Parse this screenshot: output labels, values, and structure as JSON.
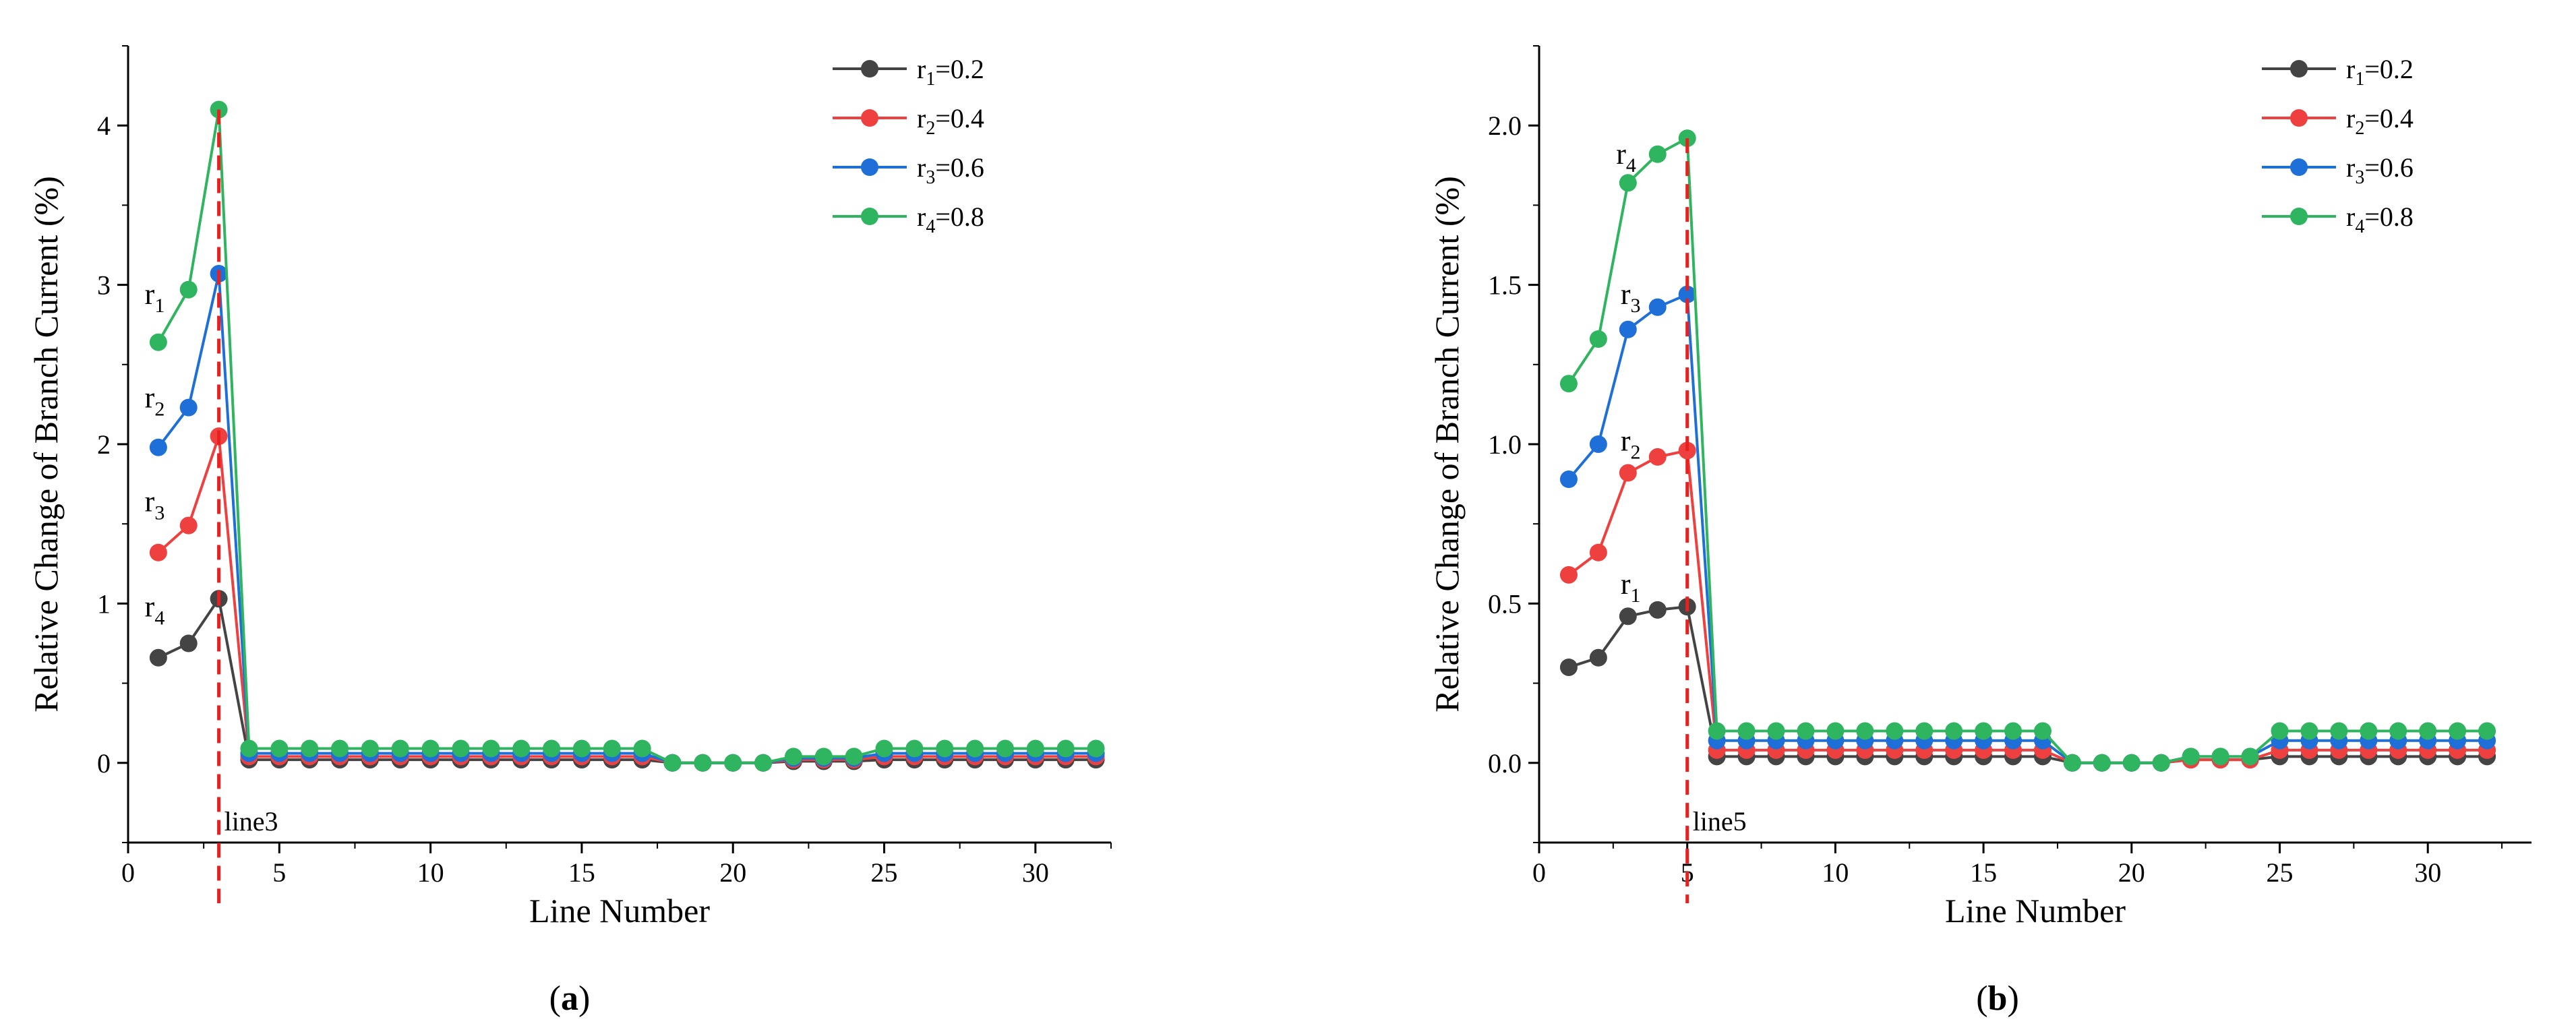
{
  "colors": {
    "r1": "#444444",
    "r2": "#ef4040",
    "r3": "#1f6fd9",
    "r4": "#2fb45f",
    "fault_line": "#e8201f",
    "axis": "#000000"
  },
  "chart_data": [
    {
      "type": "line",
      "panel_label": "(a)",
      "panel_letter": "a",
      "title": "",
      "xlabel": "Line Number",
      "ylabel": "Relative Change of Branch Current (%)",
      "xlim": [
        0,
        32.5
      ],
      "ylim": [
        -0.5,
        4.5
      ],
      "xticks": [
        0,
        5,
        10,
        15,
        20,
        25,
        30
      ],
      "yticks": [
        0,
        1,
        2,
        3,
        4
      ],
      "ytick_labels": [
        "0",
        "1",
        "2",
        "3",
        "4"
      ],
      "legend_position": "top-right",
      "fault_line": {
        "x": 3,
        "label": "line3"
      },
      "x": [
        1,
        2,
        3,
        4,
        5,
        6,
        7,
        8,
        9,
        10,
        11,
        12,
        13,
        14,
        15,
        16,
        17,
        18,
        19,
        20,
        21,
        22,
        23,
        24,
        25,
        26,
        27,
        28,
        29,
        30,
        31,
        32
      ],
      "series": [
        {
          "key": "r1",
          "name_base": "r",
          "name_sub": "1",
          "name_val": "=0.2",
          "values": [
            0.66,
            0.75,
            1.03,
            0.02,
            0.02,
            0.02,
            0.02,
            0.02,
            0.02,
            0.02,
            0.02,
            0.02,
            0.02,
            0.02,
            0.02,
            0.02,
            0.02,
            0.0,
            0.0,
            0.0,
            0.0,
            0.01,
            0.01,
            0.01,
            0.02,
            0.02,
            0.02,
            0.02,
            0.02,
            0.02,
            0.02,
            0.02
          ]
        },
        {
          "key": "r2",
          "name_base": "r",
          "name_sub": "2",
          "name_val": "=0.4",
          "values": [
            1.32,
            1.49,
            2.05,
            0.04,
            0.04,
            0.04,
            0.04,
            0.04,
            0.04,
            0.04,
            0.04,
            0.04,
            0.04,
            0.04,
            0.04,
            0.04,
            0.04,
            0.0,
            0.0,
            0.0,
            0.0,
            0.02,
            0.02,
            0.02,
            0.04,
            0.04,
            0.04,
            0.04,
            0.04,
            0.04,
            0.04,
            0.04
          ]
        },
        {
          "key": "r3",
          "name_base": "r",
          "name_sub": "3",
          "name_val": "=0.6",
          "values": [
            1.98,
            2.23,
            3.07,
            0.06,
            0.06,
            0.06,
            0.06,
            0.06,
            0.06,
            0.06,
            0.06,
            0.06,
            0.06,
            0.06,
            0.06,
            0.06,
            0.06,
            0.0,
            0.0,
            0.0,
            0.0,
            0.03,
            0.03,
            0.03,
            0.06,
            0.06,
            0.06,
            0.06,
            0.06,
            0.06,
            0.06,
            0.06
          ]
        },
        {
          "key": "r4",
          "name_base": "r",
          "name_sub": "4",
          "name_val": "=0.8",
          "values": [
            2.64,
            2.97,
            4.1,
            0.09,
            0.09,
            0.09,
            0.09,
            0.09,
            0.09,
            0.09,
            0.09,
            0.09,
            0.09,
            0.09,
            0.09,
            0.09,
            0.09,
            0.0,
            0.0,
            0.0,
            0.0,
            0.04,
            0.04,
            0.04,
            0.09,
            0.09,
            0.09,
            0.09,
            0.09,
            0.09,
            0.09,
            0.09
          ]
        }
      ],
      "annotations": [
        {
          "base": "r",
          "sub": "1",
          "x": 0.55,
          "y": 2.88
        },
        {
          "base": "r",
          "sub": "2",
          "x": 0.55,
          "y": 2.23
        },
        {
          "base": "r",
          "sub": "3",
          "x": 0.55,
          "y": 1.58
        },
        {
          "base": "r",
          "sub": "4",
          "x": 0.55,
          "y": 0.92
        }
      ]
    },
    {
      "type": "line",
      "panel_label": "(b)",
      "panel_letter": "b",
      "title": "",
      "xlabel": "Line Number",
      "ylabel": "Relative Change of Branch Current (%)",
      "xlim": [
        0,
        33.5
      ],
      "ylim": [
        -0.25,
        2.25
      ],
      "xticks": [
        0,
        5,
        10,
        15,
        20,
        25,
        30
      ],
      "yticks": [
        0.0,
        0.5,
        1.0,
        1.5,
        2.0
      ],
      "ytick_labels": [
        "0.0",
        "0.5",
        "1.0",
        "1.5",
        "2.0"
      ],
      "legend_position": "top-right",
      "fault_line": {
        "x": 5,
        "label": "line5"
      },
      "x": [
        1,
        2,
        3,
        4,
        5,
        6,
        7,
        8,
        9,
        10,
        11,
        12,
        13,
        14,
        15,
        16,
        17,
        18,
        19,
        20,
        21,
        22,
        23,
        24,
        25,
        26,
        27,
        28,
        29,
        30,
        31,
        32
      ],
      "series": [
        {
          "key": "r1",
          "name_base": "r",
          "name_sub": "1",
          "name_val": "=0.2",
          "values": [
            0.3,
            0.33,
            0.46,
            0.48,
            0.49,
            0.02,
            0.02,
            0.02,
            0.02,
            0.02,
            0.02,
            0.02,
            0.02,
            0.02,
            0.02,
            0.02,
            0.02,
            0.0,
            0.0,
            0.0,
            0.0,
            0.01,
            0.01,
            0.01,
            0.02,
            0.02,
            0.02,
            0.02,
            0.02,
            0.02,
            0.02,
            0.02
          ]
        },
        {
          "key": "r2",
          "name_base": "r",
          "name_sub": "2",
          "name_val": "=0.4",
          "values": [
            0.59,
            0.66,
            0.91,
            0.96,
            0.98,
            0.04,
            0.04,
            0.04,
            0.04,
            0.04,
            0.04,
            0.04,
            0.04,
            0.04,
            0.04,
            0.04,
            0.04,
            0.0,
            0.0,
            0.0,
            0.0,
            0.01,
            0.01,
            0.01,
            0.04,
            0.04,
            0.04,
            0.04,
            0.04,
            0.04,
            0.04,
            0.04
          ]
        },
        {
          "key": "r3",
          "name_base": "r",
          "name_sub": "3",
          "name_val": "=0.6",
          "values": [
            0.89,
            1.0,
            1.36,
            1.43,
            1.47,
            0.07,
            0.07,
            0.07,
            0.07,
            0.07,
            0.07,
            0.07,
            0.07,
            0.07,
            0.07,
            0.07,
            0.07,
            0.0,
            0.0,
            0.0,
            0.0,
            0.02,
            0.02,
            0.02,
            0.07,
            0.07,
            0.07,
            0.07,
            0.07,
            0.07,
            0.07,
            0.07
          ]
        },
        {
          "key": "r4",
          "name_base": "r",
          "name_sub": "4",
          "name_val": "=0.8",
          "values": [
            1.19,
            1.33,
            1.82,
            1.91,
            1.96,
            0.1,
            0.1,
            0.1,
            0.1,
            0.1,
            0.1,
            0.1,
            0.1,
            0.1,
            0.1,
            0.1,
            0.1,
            0.0,
            0.0,
            0.0,
            0.0,
            0.02,
            0.02,
            0.02,
            0.1,
            0.1,
            0.1,
            0.1,
            0.1,
            0.1,
            0.1,
            0.1
          ]
        }
      ],
      "annotations": [
        {
          "base": "r",
          "sub": "4",
          "x": 2.6,
          "y": 1.88
        },
        {
          "base": "r",
          "sub": "3",
          "x": 2.75,
          "y": 1.44
        },
        {
          "base": "r",
          "sub": "2",
          "x": 2.75,
          "y": 0.98
        },
        {
          "base": "r",
          "sub": "1",
          "x": 2.75,
          "y": 0.53
        }
      ]
    }
  ]
}
